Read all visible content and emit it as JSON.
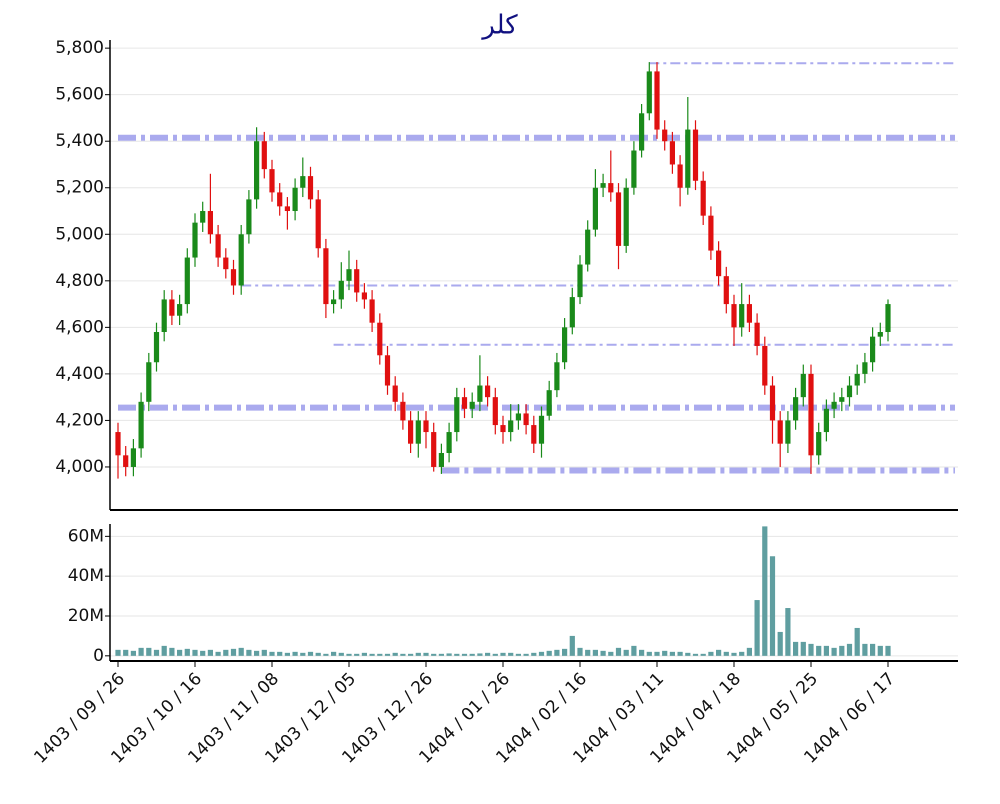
{
  "chart_data": [
    {
      "type": "candlestick",
      "title": "كلر",
      "categories": [
        "1403 / 09 / 26",
        null,
        null,
        null,
        null,
        null,
        null,
        null,
        null,
        null,
        "1403 / 10 / 16",
        null,
        null,
        null,
        null,
        null,
        null,
        null,
        null,
        null,
        "1403 / 11 / 08",
        null,
        null,
        null,
        null,
        null,
        null,
        null,
        null,
        null,
        "1403 / 12 / 05",
        null,
        null,
        null,
        null,
        null,
        null,
        null,
        null,
        null,
        "1403 / 12 / 26",
        null,
        null,
        null,
        null,
        null,
        null,
        null,
        null,
        null,
        "1404 / 01 / 26",
        null,
        null,
        null,
        null,
        null,
        null,
        null,
        null,
        null,
        "1404 / 02 / 16",
        null,
        null,
        null,
        null,
        null,
        null,
        null,
        null,
        null,
        "1404 / 03 / 11",
        null,
        null,
        null,
        null,
        null,
        null,
        null,
        null,
        null,
        "1404 / 04 / 18",
        null,
        null,
        null,
        null,
        null,
        null,
        null,
        null,
        null,
        "1404 / 05 / 25",
        null,
        null,
        null,
        null,
        null,
        null,
        null,
        null,
        null,
        "1404 / 06 / 17"
      ],
      "open": [
        4150,
        4050,
        4000,
        4080,
        4280,
        4450,
        4580,
        4720,
        4650,
        4700,
        4900,
        5050,
        5100,
        5000,
        4900,
        4850,
        4780,
        5000,
        5150,
        5400,
        5280,
        5180,
        5120,
        5100,
        5200,
        5250,
        5150,
        4940,
        4700,
        4720,
        4800,
        4850,
        4750,
        4720,
        4620,
        4480,
        4350,
        4280,
        4200,
        4100,
        4200,
        4150,
        4000,
        4060,
        4150,
        4300,
        4250,
        4280,
        4350,
        4300,
        4180,
        4150,
        4200,
        4230,
        4180,
        4100,
        4220,
        4330,
        4450,
        4600,
        4730,
        4870,
        5020,
        5200,
        5220,
        5180,
        4950,
        5200,
        5360,
        5520,
        5700,
        5450,
        5400,
        5300,
        5200,
        5450,
        5230,
        5080,
        4930,
        4820,
        4700,
        4600,
        4700,
        4620,
        4520,
        4350,
        4200,
        4100,
        4200,
        4300,
        4400,
        4050,
        4150,
        4250,
        4280,
        4300,
        4350,
        4400,
        4450,
        4560,
        4580
      ],
      "high": [
        4190,
        4090,
        4120,
        4320,
        4490,
        4620,
        4760,
        4760,
        4740,
        4940,
        5090,
        5140,
        5260,
        5040,
        4940,
        4890,
        5040,
        5190,
        5460,
        5440,
        5320,
        5220,
        5160,
        5240,
        5330,
        5290,
        5190,
        4980,
        4760,
        4880,
        4930,
        4890,
        4790,
        4760,
        4660,
        4520,
        4390,
        4320,
        4240,
        4240,
        4240,
        4190,
        4100,
        4190,
        4340,
        4340,
        4320,
        4480,
        4390,
        4340,
        4220,
        4270,
        4270,
        4270,
        4220,
        4260,
        4370,
        4490,
        4640,
        4770,
        4910,
        5060,
        5280,
        5260,
        5360,
        5220,
        5240,
        5400,
        5560,
        5740,
        5740,
        5490,
        5440,
        5340,
        5590,
        5490,
        5270,
        5120,
        4970,
        4860,
        4740,
        4790,
        4740,
        4660,
        4560,
        4390,
        4240,
        4240,
        4340,
        4440,
        4440,
        4190,
        4290,
        4320,
        4340,
        4390,
        4440,
        4490,
        4600,
        4620,
        4720
      ],
      "low": [
        3950,
        3960,
        3960,
        4040,
        4240,
        4410,
        4540,
        4610,
        4610,
        4660,
        4860,
        5010,
        4960,
        4860,
        4810,
        4740,
        4740,
        4960,
        5110,
        5240,
        5140,
        5080,
        5020,
        5060,
        5160,
        5110,
        4900,
        4640,
        4660,
        4680,
        4760,
        4710,
        4680,
        4580,
        4440,
        4310,
        4240,
        4160,
        4060,
        4040,
        4080,
        3980,
        3970,
        4020,
        4110,
        4210,
        4210,
        4240,
        4260,
        4140,
        4100,
        4110,
        4160,
        4140,
        4060,
        4040,
        4200,
        4300,
        4420,
        4570,
        4700,
        4840,
        4990,
        5160,
        5140,
        4850,
        4920,
        5170,
        5330,
        5490,
        5410,
        5360,
        5260,
        5120,
        5170,
        5190,
        5040,
        4890,
        4780,
        4660,
        4520,
        4560,
        4580,
        4480,
        4310,
        4100,
        4000,
        4060,
        4160,
        4260,
        3970,
        4010,
        4110,
        4210,
        4240,
        4260,
        4310,
        4360,
        4410,
        4520,
        4540
      ],
      "close": [
        4050,
        4000,
        4080,
        4280,
        4450,
        4580,
        4720,
        4650,
        4700,
        4900,
        5050,
        5100,
        5000,
        4900,
        4850,
        4780,
        5000,
        5150,
        5400,
        5280,
        5180,
        5120,
        5100,
        5200,
        5250,
        5150,
        4940,
        4700,
        4720,
        4800,
        4850,
        4750,
        4720,
        4620,
        4480,
        4350,
        4280,
        4200,
        4100,
        4200,
        4150,
        4000,
        4060,
        4150,
        4300,
        4250,
        4280,
        4350,
        4300,
        4180,
        4150,
        4200,
        4230,
        4180,
        4100,
        4220,
        4330,
        4450,
        4600,
        4730,
        4870,
        5020,
        5200,
        5220,
        5180,
        4950,
        5200,
        5360,
        5520,
        5700,
        5450,
        5400,
        5300,
        5200,
        5450,
        5230,
        5080,
        4930,
        4820,
        4700,
        4600,
        4700,
        4620,
        4520,
        4350,
        4200,
        4100,
        4200,
        4300,
        4400,
        4050,
        4150,
        4250,
        4280,
        4300,
        4350,
        4400,
        4450,
        4560,
        4580,
        4700
      ],
      "up_color": "#1a8a1a",
      "down_color": "#e01010",
      "ylim": [
        3815,
        5835
      ],
      "yticks": [
        {
          "value": 4000,
          "label": "4,000"
        },
        {
          "value": 4200,
          "label": "4,200"
        },
        {
          "value": 4400,
          "label": "4,400"
        },
        {
          "value": 4600,
          "label": "4,600"
        },
        {
          "value": 4800,
          "label": "4,800"
        },
        {
          "value": 5000,
          "label": "5,000"
        },
        {
          "value": 5200,
          "label": "5,200"
        },
        {
          "value": 5400,
          "label": "5,400"
        },
        {
          "value": 5600,
          "label": "5,600"
        },
        {
          "value": 5800,
          "label": "5,800"
        }
      ],
      "grid": true,
      "levels": [
        {
          "value": 5415,
          "start": 0,
          "weight": "thick"
        },
        {
          "value": 5735,
          "start": 69,
          "weight": "thin"
        },
        {
          "value": 4780,
          "start": 16,
          "weight": "thin"
        },
        {
          "value": 4525,
          "start": 28,
          "weight": "thin"
        },
        {
          "value": 4255,
          "start": 0,
          "weight": "thick"
        },
        {
          "value": 3985,
          "start": 42,
          "weight": "thick"
        }
      ],
      "level_color": "#aaaaee"
    },
    {
      "type": "bar",
      "color": "#5f9ea0",
      "values": [
        3000000,
        3000000,
        2500000,
        4000000,
        4000000,
        3000000,
        5000000,
        4000000,
        3000000,
        3500000,
        3000000,
        2500000,
        3000000,
        2000000,
        3000000,
        3500000,
        4000000,
        3000000,
        2500000,
        3000000,
        2000000,
        2000000,
        1500000,
        2000000,
        1500000,
        2000000,
        1500000,
        1000000,
        2000000,
        1500000,
        1000000,
        1000000,
        1500000,
        1000000,
        1000000,
        1000000,
        1500000,
        1000000,
        1000000,
        1500000,
        1500000,
        1000000,
        1000000,
        1200000,
        1000000,
        1000000,
        1000000,
        1200000,
        1500000,
        1000000,
        1500000,
        1500000,
        1000000,
        1000000,
        1500000,
        2000000,
        2500000,
        3000000,
        3500000,
        10000000,
        4000000,
        3000000,
        3000000,
        2500000,
        2000000,
        4000000,
        3000000,
        5000000,
        3000000,
        2000000,
        2000000,
        2500000,
        2000000,
        2000000,
        1500000,
        1000000,
        1000000,
        2000000,
        3000000,
        2000000,
        1500000,
        2000000,
        4000000,
        28000000,
        65000000,
        50000000,
        12000000,
        24000000,
        7000000,
        7000000,
        6000000,
        5000000,
        5000000,
        4000000,
        5000000,
        6000000,
        14000000,
        6000000,
        6000000,
        5000000,
        5000000
      ],
      "ylim": [
        -2600000,
        66200000
      ],
      "yticks": [
        0,
        {
          "value": 20000000,
          "label": "20M"
        },
        {
          "value": 40000000,
          "label": "40M"
        },
        {
          "value": 60000000,
          "label": "60M"
        }
      ],
      "grid": true
    }
  ]
}
